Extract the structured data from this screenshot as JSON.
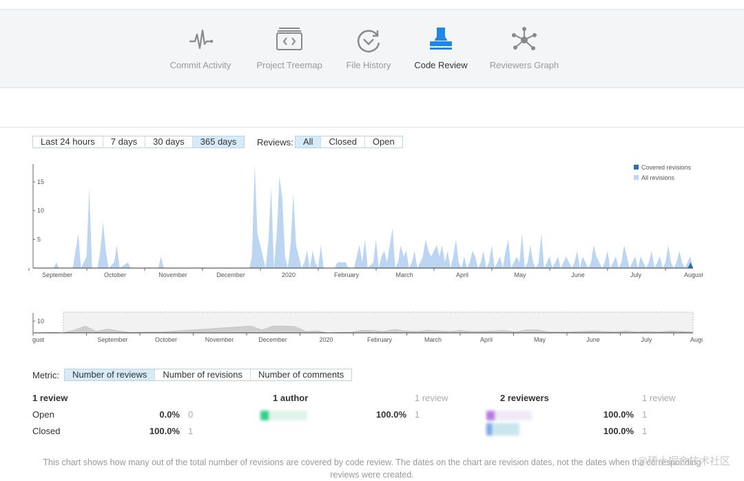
{
  "nav": {
    "items": [
      {
        "label": "Commit Activity",
        "icon": "pulse-icon"
      },
      {
        "label": "Project Treemap",
        "icon": "treemap-icon"
      },
      {
        "label": "File History",
        "icon": "history-icon"
      },
      {
        "label": "Code Review",
        "icon": "stamp-icon"
      },
      {
        "label": "Reviewers Graph",
        "icon": "graph-icon"
      }
    ],
    "active": "Code Review",
    "active_color": "#1f87e5"
  },
  "filters": {
    "period": [
      "Last 24 hours",
      "7 days",
      "30 days",
      "365 days"
    ],
    "period_selected": "365 days",
    "reviews_label": "Reviews:",
    "reviews": [
      "All",
      "Closed",
      "Open"
    ],
    "reviews_selected": "All"
  },
  "chart_data": [
    {
      "type": "area",
      "legend": [
        "Covered revisions",
        "All revisions"
      ],
      "legend_position": "top-right",
      "colors": {
        "Covered revisions": "#2b6fb6",
        "All revisions": "#bcd6f2"
      },
      "x_tick_labels": [
        "September",
        "October",
        "November",
        "December",
        "2020",
        "February",
        "March",
        "April",
        "May",
        "June",
        "July",
        "August"
      ],
      "y_ticks": [
        5,
        10,
        15
      ],
      "ylim": [
        0,
        18
      ],
      "series": [
        {
          "name": "All revisions",
          "points": [
            [
              128.5,
              0
            ],
            [
              129.4,
              1
            ],
            [
              130.4,
              0
            ],
            [
              135.4,
              0
            ],
            [
              136.4,
              3
            ],
            [
              137.4,
              6
            ],
            [
              138.4,
              0
            ],
            [
              140.4,
              2
            ],
            [
              141.4,
              14
            ],
            [
              142.4,
              0
            ],
            [
              144.4,
              0
            ],
            [
              145.4,
              3
            ],
            [
              146.4,
              8
            ],
            [
              147.4,
              3
            ],
            [
              148.4,
              0
            ],
            [
              150.4,
              1
            ],
            [
              151.4,
              4
            ],
            [
              152.4,
              0
            ],
            [
              155.4,
              1
            ],
            [
              156.4,
              0
            ],
            [
              166.4,
              0
            ],
            [
              167.4,
              2
            ],
            [
              168.4,
              0
            ],
            [
              199.5,
              0
            ],
            [
              200.4,
              2
            ],
            [
              201.4,
              18
            ],
            [
              202.4,
              6
            ],
            [
              203.4,
              4
            ],
            [
              204.4,
              2
            ],
            [
              205.4,
              0
            ],
            [
              206.4,
              5
            ],
            [
              207.4,
              14
            ],
            [
              208.4,
              0
            ],
            [
              209.4,
              6
            ],
            [
              210.4,
              16
            ],
            [
              211.4,
              12
            ],
            [
              212.4,
              2
            ],
            [
              213.4,
              0
            ],
            [
              214.4,
              4
            ],
            [
              215.4,
              13
            ],
            [
              216.4,
              4
            ],
            [
              217.4,
              2
            ],
            [
              218.4,
              0
            ],
            [
              219.4,
              1
            ],
            [
              220.4,
              3
            ],
            [
              221.4,
              0
            ],
            [
              222.4,
              3
            ],
            [
              223.4,
              1
            ],
            [
              224.4,
              0
            ],
            [
              225.4,
              4
            ],
            [
              226.4,
              0
            ],
            [
              230.4,
              0
            ],
            [
              231.4,
              1
            ],
            [
              234.4,
              1
            ],
            [
              235.4,
              0
            ],
            [
              237.4,
              0
            ],
            [
              238.4,
              2
            ],
            [
              239.4,
              4
            ],
            [
              240.4,
              1
            ],
            [
              241.4,
              5
            ],
            [
              242.4,
              0
            ],
            [
              244.4,
              1
            ],
            [
              245.4,
              5
            ],
            [
              246.4,
              0
            ],
            [
              247.4,
              2
            ],
            [
              248.4,
              3
            ],
            [
              249.4,
              1
            ],
            [
              250.4,
              4
            ],
            [
              251.4,
              7
            ],
            [
              252.4,
              0
            ],
            [
              253.4,
              1
            ],
            [
              254.4,
              4
            ],
            [
              255.4,
              2
            ],
            [
              256.4,
              3
            ],
            [
              257.4,
              0
            ],
            [
              258.4,
              1
            ],
            [
              259.4,
              3
            ],
            [
              260.4,
              0
            ],
            [
              261.4,
              1
            ],
            [
              262.4,
              2
            ],
            [
              263.4,
              5
            ],
            [
              264.4,
              3
            ],
            [
              265.4,
              2
            ],
            [
              266.4,
              3
            ],
            [
              267.4,
              4
            ],
            [
              268.4,
              2
            ],
            [
              269.4,
              4
            ],
            [
              270.4,
              1
            ],
            [
              271.4,
              3
            ],
            [
              272.4,
              0
            ],
            [
              273.4,
              2
            ],
            [
              274.4,
              5
            ],
            [
              275.4,
              1
            ],
            [
              276.4,
              0
            ],
            [
              277.4,
              2
            ],
            [
              278.4,
              0
            ],
            [
              279.4,
              1
            ],
            [
              280.4,
              3
            ],
            [
              281.4,
              2
            ],
            [
              282.4,
              0
            ],
            [
              283.4,
              1
            ],
            [
              284.4,
              3
            ],
            [
              285.4,
              0
            ],
            [
              286.4,
              1
            ],
            [
              287.4,
              4
            ],
            [
              288.4,
              0
            ],
            [
              289.4,
              1
            ],
            [
              290.4,
              2
            ],
            [
              291.4,
              0
            ],
            [
              292.4,
              3
            ],
            [
              293.4,
              5
            ],
            [
              294.4,
              0
            ],
            [
              295.4,
              1
            ],
            [
              296.4,
              2
            ],
            [
              297.4,
              1
            ],
            [
              298.4,
              6
            ],
            [
              299.4,
              0
            ],
            [
              300.4,
              1
            ],
            [
              301.4,
              4
            ],
            [
              302.4,
              1
            ],
            [
              303.4,
              0
            ],
            [
              304.4,
              1
            ],
            [
              305.4,
              6
            ],
            [
              306.4,
              0
            ],
            [
              307.4,
              1
            ],
            [
              308.4,
              2
            ],
            [
              309.4,
              0
            ],
            [
              310.4,
              1
            ],
            [
              311.4,
              2
            ],
            [
              312.4,
              0
            ],
            [
              313.4,
              1
            ],
            [
              314.4,
              2
            ],
            [
              315.4,
              1
            ],
            [
              316.4,
              0
            ],
            [
              317.4,
              1
            ],
            [
              318.4,
              3
            ],
            [
              319.4,
              0
            ],
            [
              320.4,
              2
            ],
            [
              321.4,
              1
            ],
            [
              322.4,
              0
            ],
            [
              323.4,
              1
            ],
            [
              324.4,
              4
            ],
            [
              325.4,
              2
            ],
            [
              326.4,
              1
            ],
            [
              327.4,
              0
            ],
            [
              328.4,
              1
            ],
            [
              329.4,
              3
            ],
            [
              330.4,
              0
            ],
            [
              331.4,
              1
            ],
            [
              332.4,
              2
            ],
            [
              333.4,
              0
            ],
            [
              334.4,
              1
            ],
            [
              335.4,
              4
            ],
            [
              336.4,
              2
            ],
            [
              337.4,
              0
            ],
            [
              338.4,
              1
            ],
            [
              339.4,
              2
            ],
            [
              340.4,
              0
            ],
            [
              341.4,
              2
            ],
            [
              342.4,
              1
            ],
            [
              343.4,
              0
            ],
            [
              344.4,
              1
            ],
            [
              345.4,
              3
            ],
            [
              346.4,
              0
            ],
            [
              347.4,
              1
            ],
            [
              348.4,
              2
            ],
            [
              349.4,
              0
            ],
            [
              350.4,
              1
            ],
            [
              351.4,
              4
            ],
            [
              352.4,
              1
            ],
            [
              353.4,
              0
            ],
            [
              354.4,
              1
            ],
            [
              355.4,
              3
            ],
            [
              356.4,
              1
            ],
            [
              357.4,
              0
            ],
            [
              358.4,
              1
            ],
            [
              359.4,
              2
            ],
            [
              360.4,
              0
            ]
          ]
        },
        {
          "name": "Covered revisions",
          "points": [
            [
              358.5,
              0
            ],
            [
              359.5,
              1
            ],
            [
              360.4,
              0
            ]
          ]
        }
      ]
    },
    {
      "type": "area",
      "x_tick_labels": [
        "gust",
        "September",
        "October",
        "November",
        "December",
        "2020",
        "February",
        "March",
        "April",
        "May",
        "June",
        "July",
        "August"
      ],
      "y_ticks": [
        10
      ],
      "ylim": [
        0,
        14
      ]
    }
  ],
  "metric": {
    "label": "Metric:",
    "options": [
      "Number of reviews",
      "Number of revisions",
      "Number of comments"
    ],
    "selected": "Number of reviews"
  },
  "stats": {
    "reviews": {
      "title": "1 review",
      "rows": [
        {
          "label": "Open",
          "pct": "0.0%",
          "count": "0"
        },
        {
          "label": "Closed",
          "pct": "100.0%",
          "count": "1"
        }
      ]
    },
    "authors": {
      "title": "1 author",
      "sub": "1 review",
      "rows": [
        {
          "pct": "100.0%",
          "count": "1"
        }
      ]
    },
    "reviewers": {
      "title": "2 reviewers",
      "sub": "1 review",
      "rows": [
        {
          "pct": "100.0%",
          "count": "1"
        },
        {
          "pct": "100.0%",
          "count": "1"
        }
      ]
    }
  },
  "footer": "This chart shows how many out of the total number of revisions are covered by code review. The dates on the chart are revision dates, not the dates when the corresponding reviews were created.",
  "watermark": "@稀土掘金技术社区"
}
